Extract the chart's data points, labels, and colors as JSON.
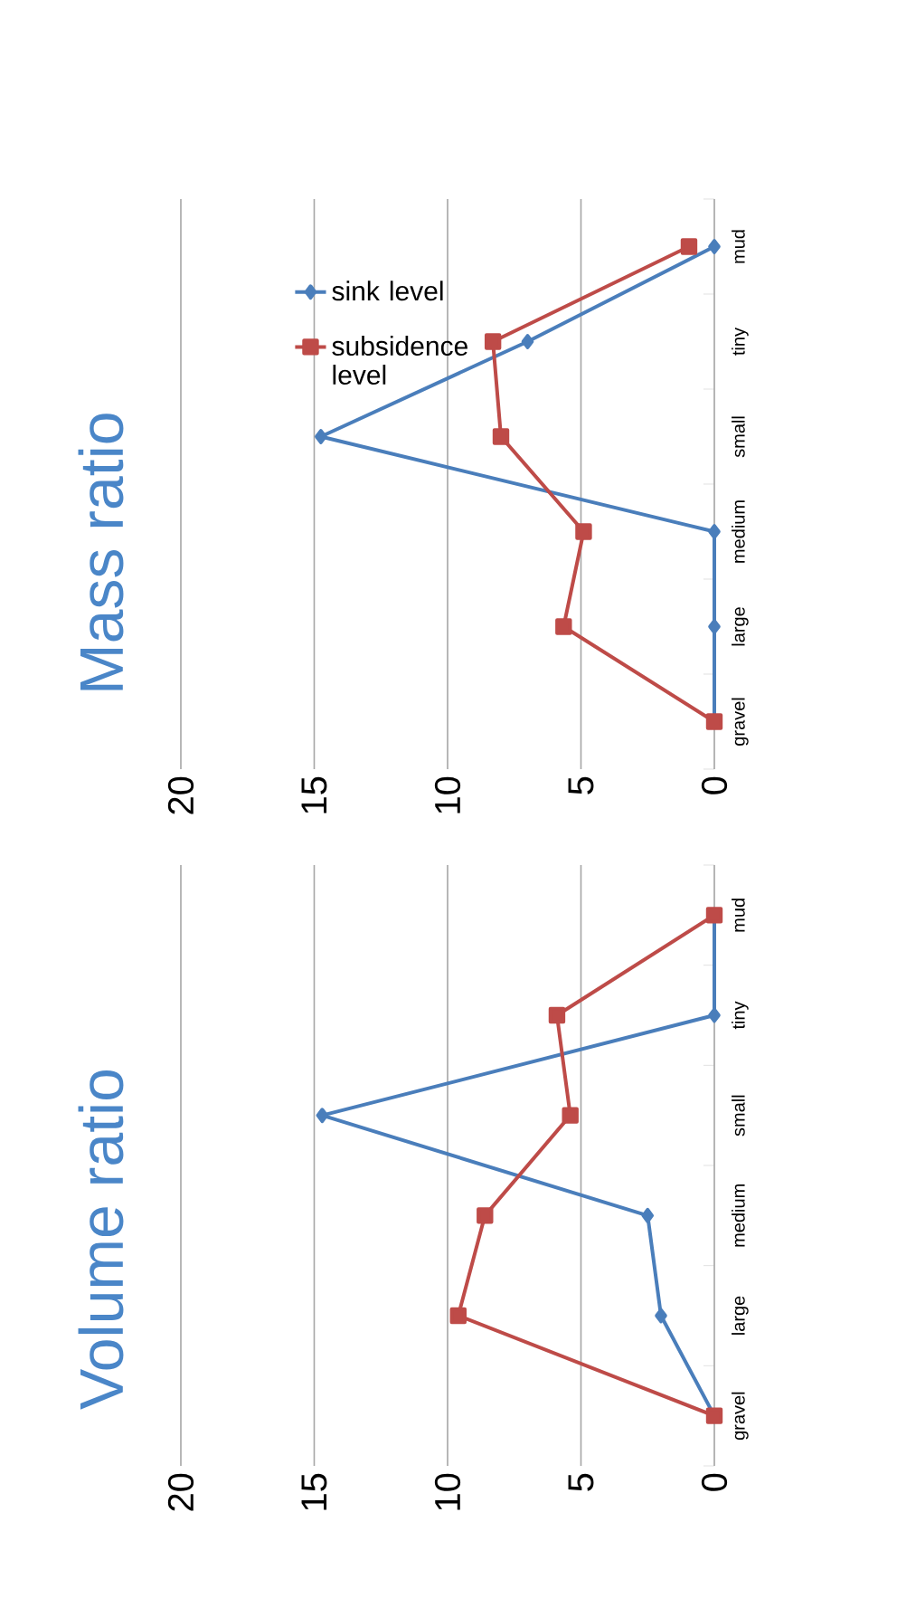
{
  "chart_data": [
    {
      "type": "line",
      "orientation": "horizontal",
      "title": "Volume ratio",
      "categories": [
        "mud",
        "tiny",
        "small",
        "medium",
        "large",
        "gravel"
      ],
      "xlim": [
        20,
        0
      ],
      "xticks": [
        0,
        5,
        10,
        15,
        20
      ],
      "grid": "x",
      "legend": false,
      "series": [
        {
          "color": "#4a7ebb",
          "marker": "diamond",
          "values": [
            0,
            0,
            14.7,
            2.5,
            2.0,
            0
          ]
        },
        {
          "color": "#be4b48",
          "marker": "square",
          "values": [
            0,
            5.9,
            5.4,
            8.6,
            9.6,
            0
          ]
        }
      ]
    },
    {
      "type": "line",
      "orientation": "horizontal",
      "title": "Mass ratio",
      "categories": [
        "mud",
        "tiny",
        "small",
        "medium",
        "large",
        "gravel"
      ],
      "xlim": [
        20,
        0
      ],
      "xticks": [
        0,
        5,
        10,
        15,
        20
      ],
      "grid": "x",
      "legend": "top left",
      "series": [
        {
          "name": "sink level",
          "color": "#4a7ebb",
          "marker": "diamond",
          "values": [
            0,
            7.0,
            14.75,
            0,
            0,
            0
          ]
        },
        {
          "name": "subsidence level",
          "color": "#be4b48",
          "marker": "square",
          "values": [
            0.95,
            8.3,
            8.0,
            4.9,
            5.65,
            0
          ]
        }
      ]
    }
  ]
}
